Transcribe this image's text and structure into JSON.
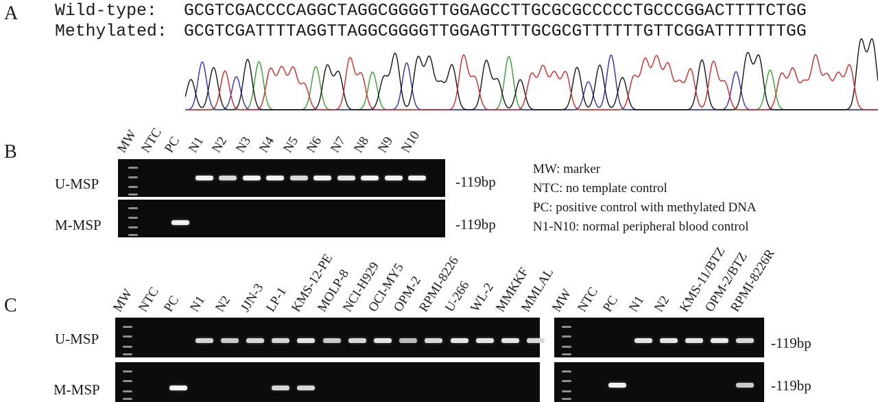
{
  "panels": {
    "a": "A",
    "b": "B",
    "c": "C"
  },
  "sequences": {
    "wild_type_label": "Wild-type:",
    "wild_type": "GCGTCGACCCCAGGCTAGGCGGGGTTGGAGCCTTGCGCGCCCCCTGCCCGGACTTTTCTGG",
    "methylated_label": "Methylated:",
    "methylated": "GCGTCGATTTTAGGTTAGGCGGGGTTGGAGTTTTGCGCGTTTTTTGTTCGGATTTTTTTGG"
  },
  "trace_colors": {
    "A": "#2aa52a",
    "C": "#2a2ad0",
    "G": "#111111",
    "T": "#e02020"
  },
  "panel_b": {
    "lanes": [
      "MW",
      "NTC",
      "PC",
      "N1",
      "N2",
      "N3",
      "N4",
      "N5",
      "N6",
      "N7",
      "N8",
      "N9",
      "N10"
    ],
    "row_u": "U-MSP",
    "row_m": "M-MSP",
    "size_u": "-119bp",
    "size_m": "-119bp",
    "bands_u": [
      0,
      0,
      0,
      0.9,
      0.7,
      0.9,
      0.9,
      0.7,
      0.9,
      0.8,
      0.9,
      0.9,
      0.9
    ],
    "bands_m": [
      0,
      0,
      0.9,
      0,
      0,
      0,
      0,
      0,
      0,
      0,
      0,
      0,
      0
    ],
    "legend": [
      "MW: marker",
      "NTC: no template control",
      "PC: positive control with methylated DNA",
      "N1-N10: normal peripheral blood control"
    ]
  },
  "panel_c": {
    "left_lanes": [
      "MW",
      "NTC",
      "PC",
      "N1",
      "N2",
      "JJN-3",
      "LP-1",
      "KMS-12-PE",
      "MOLP-8",
      "NCI-H929",
      "OCI-MY5",
      "OPM-2",
      "RPMI-8226",
      "U-266",
      "WL-2",
      "MMKKF",
      "MMLAL"
    ],
    "right_lanes": [
      "MW",
      "NTC",
      "PC",
      "N1",
      "N2",
      "KMS-11/BTZ",
      "OPM-2/BTZ",
      "RPMI-8226R"
    ],
    "row_u": "U-MSP",
    "row_m": "M-MSP",
    "size_u": "-119bp",
    "size_m": "-119bp",
    "left_bands_u": [
      0,
      0,
      0,
      0.7,
      0.6,
      0.7,
      0.7,
      0.8,
      0.6,
      0.7,
      0.8,
      0.5,
      0.7,
      0.8,
      0.8,
      0.8,
      0.7
    ],
    "left_bands_m": [
      0,
      0,
      0.95,
      0,
      0,
      0,
      0.7,
      0.7,
      0,
      0,
      0,
      0,
      0,
      0,
      0,
      0,
      0
    ],
    "right_bands_u": [
      0,
      0,
      0,
      0.8,
      0.8,
      0.8,
      0.85,
      0.7
    ],
    "right_bands_m": [
      0,
      0,
      0.9,
      0,
      0,
      0,
      0,
      0.6
    ]
  }
}
